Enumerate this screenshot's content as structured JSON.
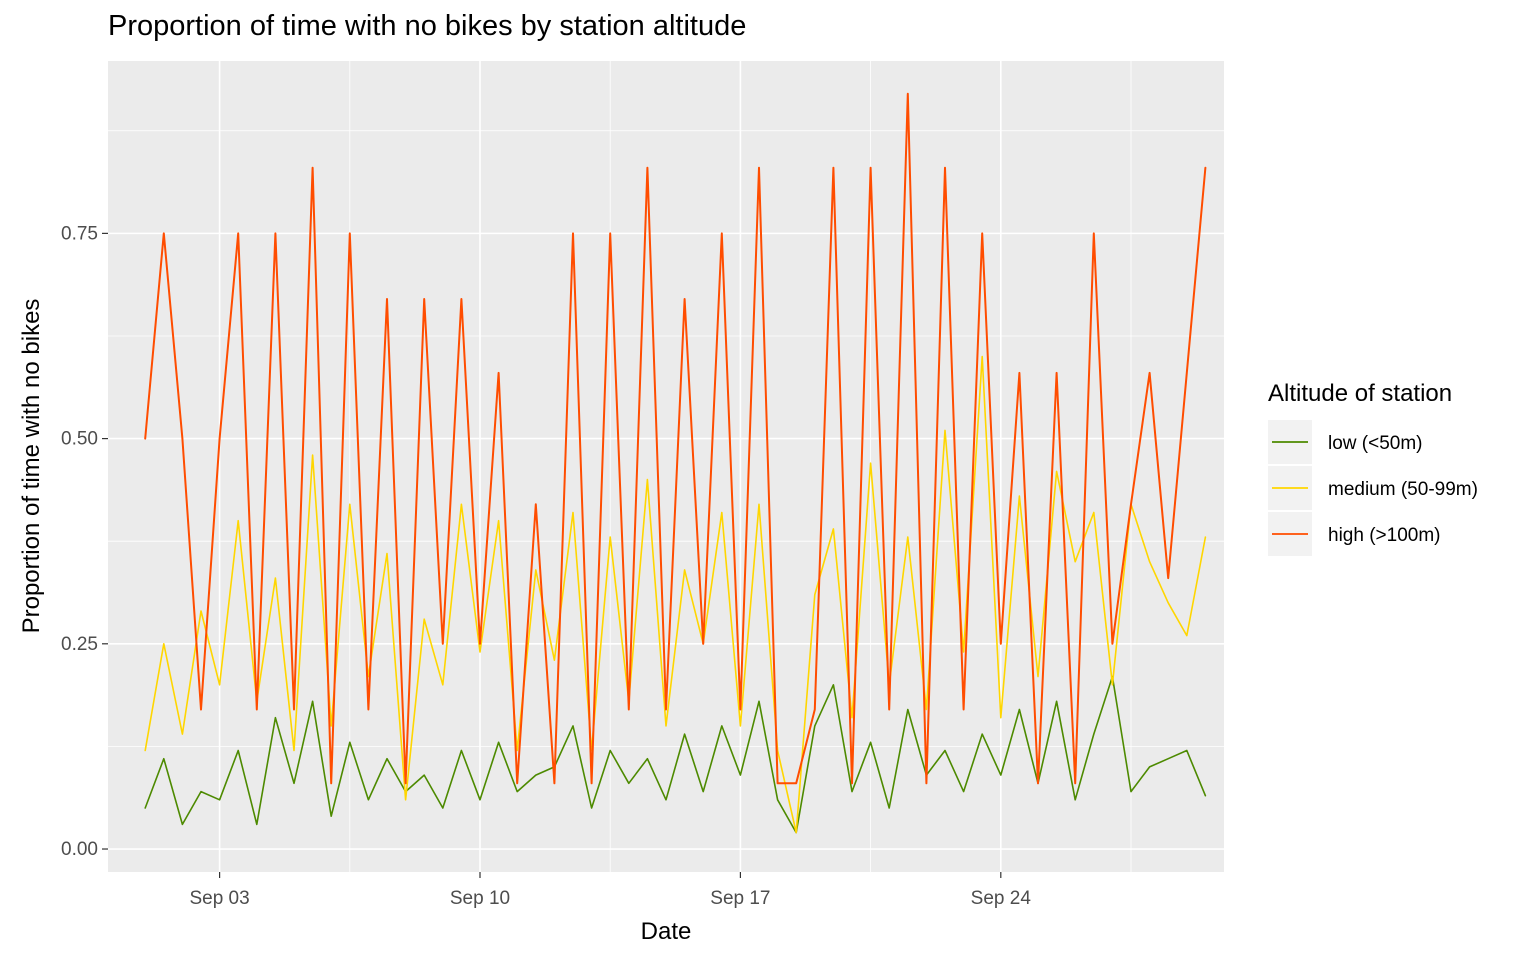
{
  "chart_data": {
    "type": "line",
    "title": "Proportion of time with no bikes by station altitude",
    "xlabel": "Date",
    "ylabel": "Proportion of time with no bikes",
    "x_domain": [
      "2023-08-31",
      "2023-09-30"
    ],
    "x_ticks": [
      {
        "date": "2023-09-03",
        "label": "Sep 03"
      },
      {
        "date": "2023-09-10",
        "label": "Sep 10"
      },
      {
        "date": "2023-09-17",
        "label": "Sep 17"
      },
      {
        "date": "2023-09-24",
        "label": "Sep 24"
      }
    ],
    "ylim": [
      -0.028,
      0.96
    ],
    "y_ticks": [
      0.0,
      0.25,
      0.5,
      0.75
    ],
    "y_tick_labels": [
      "0.00",
      "0.25",
      "0.50",
      "0.75"
    ],
    "grid": true,
    "legend": {
      "title": "Altitude of station",
      "position": "right"
    },
    "series": [
      {
        "name": "low (<50m)",
        "color": "#4d8a00",
        "x": [
          "2023-09-01",
          "2023-09-01T12:00",
          "2023-09-02",
          "2023-09-02T12:00",
          "2023-09-03",
          "2023-09-03T12:00",
          "2023-09-04",
          "2023-09-04T12:00",
          "2023-09-05",
          "2023-09-05T12:00",
          "2023-09-06",
          "2023-09-06T12:00",
          "2023-09-07",
          "2023-09-07T12:00",
          "2023-09-08",
          "2023-09-08T12:00",
          "2023-09-09",
          "2023-09-09T12:00",
          "2023-09-10",
          "2023-09-10T12:00",
          "2023-09-11",
          "2023-09-11T12:00",
          "2023-09-12",
          "2023-09-12T12:00",
          "2023-09-13",
          "2023-09-13T12:00",
          "2023-09-14",
          "2023-09-14T12:00",
          "2023-09-15",
          "2023-09-15T12:00",
          "2023-09-16",
          "2023-09-16T12:00",
          "2023-09-17",
          "2023-09-17T12:00",
          "2023-09-18",
          "2023-09-18T12:00",
          "2023-09-19",
          "2023-09-19T12:00",
          "2023-09-20",
          "2023-09-20T12:00",
          "2023-09-21",
          "2023-09-21T12:00",
          "2023-09-22",
          "2023-09-22T12:00",
          "2023-09-23",
          "2023-09-23T12:00",
          "2023-09-24",
          "2023-09-24T12:00",
          "2023-09-25",
          "2023-09-25T12:00",
          "2023-09-26",
          "2023-09-26T12:00",
          "2023-09-27",
          "2023-09-27T12:00",
          "2023-09-28",
          "2023-09-28T12:00",
          "2023-09-29",
          "2023-09-29T12:00"
        ],
        "values": [
          0.05,
          0.11,
          0.03,
          0.07,
          0.06,
          0.12,
          0.03,
          0.16,
          0.08,
          0.18,
          0.04,
          0.13,
          0.06,
          0.11,
          0.07,
          0.09,
          0.05,
          0.12,
          0.06,
          0.13,
          0.07,
          0.09,
          0.1,
          0.15,
          0.05,
          0.12,
          0.08,
          0.11,
          0.06,
          0.14,
          0.07,
          0.15,
          0.09,
          0.18,
          0.06,
          0.02,
          0.15,
          0.2,
          0.07,
          0.13,
          0.05,
          0.17,
          0.09,
          0.12,
          0.07,
          0.14,
          0.09,
          0.17,
          0.08,
          0.18,
          0.06,
          0.14,
          0.21,
          0.07,
          0.1,
          0.11,
          0.12,
          0.065
        ]
      },
      {
        "name": "medium (50-99m)",
        "color": "#ffd600",
        "x": [
          "2023-09-01",
          "2023-09-01T12:00",
          "2023-09-02",
          "2023-09-02T12:00",
          "2023-09-03",
          "2023-09-03T12:00",
          "2023-09-04",
          "2023-09-04T12:00",
          "2023-09-05",
          "2023-09-05T12:00",
          "2023-09-06",
          "2023-09-06T12:00",
          "2023-09-07",
          "2023-09-07T12:00",
          "2023-09-08",
          "2023-09-08T12:00",
          "2023-09-09",
          "2023-09-09T12:00",
          "2023-09-10",
          "2023-09-10T12:00",
          "2023-09-11",
          "2023-09-11T12:00",
          "2023-09-12",
          "2023-09-12T12:00",
          "2023-09-13",
          "2023-09-13T12:00",
          "2023-09-14",
          "2023-09-14T12:00",
          "2023-09-15",
          "2023-09-15T12:00",
          "2023-09-16",
          "2023-09-16T12:00",
          "2023-09-17",
          "2023-09-17T12:00",
          "2023-09-18",
          "2023-09-18T12:00",
          "2023-09-19",
          "2023-09-19T12:00",
          "2023-09-20",
          "2023-09-20T12:00",
          "2023-09-21",
          "2023-09-21T12:00",
          "2023-09-22",
          "2023-09-22T12:00",
          "2023-09-23",
          "2023-09-23T12:00",
          "2023-09-24",
          "2023-09-24T12:00",
          "2023-09-25",
          "2023-09-25T12:00",
          "2023-09-26",
          "2023-09-26T12:00",
          "2023-09-27",
          "2023-09-27T12:00",
          "2023-09-28",
          "2023-09-28T12:00",
          "2023-09-29",
          "2023-09-29T12:00"
        ],
        "values": [
          0.12,
          0.25,
          0.14,
          0.29,
          0.2,
          0.4,
          0.18,
          0.33,
          0.12,
          0.48,
          0.15,
          0.42,
          0.21,
          0.36,
          0.06,
          0.28,
          0.2,
          0.42,
          0.24,
          0.4,
          0.12,
          0.34,
          0.23,
          0.41,
          0.12,
          0.38,
          0.18,
          0.45,
          0.15,
          0.34,
          0.25,
          0.41,
          0.15,
          0.42,
          0.12,
          0.02,
          0.31,
          0.39,
          0.16,
          0.47,
          0.2,
          0.38,
          0.17,
          0.51,
          0.24,
          0.6,
          0.16,
          0.43,
          0.21,
          0.46,
          0.35,
          0.41,
          0.2,
          0.42,
          0.35,
          0.3,
          0.26,
          0.38
        ]
      },
      {
        "name": "high (>100m)",
        "color": "#ff4d00",
        "x": [
          "2023-09-01",
          "2023-09-01T12:00",
          "2023-09-02",
          "2023-09-02T12:00",
          "2023-09-03",
          "2023-09-03T12:00",
          "2023-09-04",
          "2023-09-04T12:00",
          "2023-09-05",
          "2023-09-05T12:00",
          "2023-09-06",
          "2023-09-06T12:00",
          "2023-09-07",
          "2023-09-07T12:00",
          "2023-09-08",
          "2023-09-08T12:00",
          "2023-09-09",
          "2023-09-09T12:00",
          "2023-09-10",
          "2023-09-10T12:00",
          "2023-09-11",
          "2023-09-11T12:00",
          "2023-09-12",
          "2023-09-12T12:00",
          "2023-09-13",
          "2023-09-13T12:00",
          "2023-09-14",
          "2023-09-14T12:00",
          "2023-09-15",
          "2023-09-15T12:00",
          "2023-09-16",
          "2023-09-16T12:00",
          "2023-09-17",
          "2023-09-17T12:00",
          "2023-09-18",
          "2023-09-18T12:00",
          "2023-09-19",
          "2023-09-19T12:00",
          "2023-09-20",
          "2023-09-20T12:00",
          "2023-09-21",
          "2023-09-21T12:00",
          "2023-09-22",
          "2023-09-22T12:00",
          "2023-09-23",
          "2023-09-23T12:00",
          "2023-09-24",
          "2023-09-24T12:00",
          "2023-09-25",
          "2023-09-25T12:00",
          "2023-09-26",
          "2023-09-26T12:00",
          "2023-09-27",
          "2023-09-27T12:00",
          "2023-09-28",
          "2023-09-28T12:00",
          "2023-09-29",
          "2023-09-29T12:00"
        ],
        "values": [
          0.5,
          0.75,
          0.5,
          0.17,
          0.5,
          0.75,
          0.17,
          0.75,
          0.17,
          0.83,
          0.08,
          0.75,
          0.17,
          0.67,
          0.08,
          0.67,
          0.25,
          0.67,
          0.25,
          0.58,
          0.08,
          0.42,
          0.08,
          0.75,
          0.08,
          0.75,
          0.17,
          0.83,
          0.17,
          0.67,
          0.25,
          0.75,
          0.17,
          0.83,
          0.08,
          0.08,
          0.17,
          0.83,
          0.08,
          0.83,
          0.17,
          0.92,
          0.08,
          0.83,
          0.17,
          0.75,
          0.25,
          0.58,
          0.08,
          0.58,
          0.08,
          0.75,
          0.25,
          0.42,
          0.58,
          0.33,
          0.58,
          0.83
        ]
      }
    ]
  }
}
